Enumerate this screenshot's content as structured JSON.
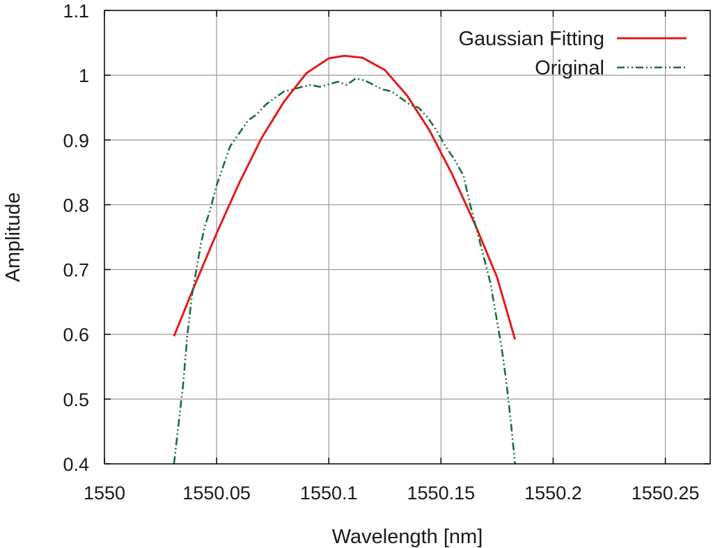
{
  "chart_data": {
    "type": "line",
    "title": "",
    "xlabel": "Wavelength [nm]",
    "ylabel": "Amplitude",
    "xlim": [
      1550,
      1550.27
    ],
    "ylim": [
      0.4,
      1.1
    ],
    "x_ticks": [
      1550,
      1550.05,
      1550.1,
      1550.15,
      1550.2,
      1550.25
    ],
    "x_tick_labels": [
      "1550",
      "1550.05",
      "1550.1",
      "1550.15",
      "1550.2",
      "1550.25"
    ],
    "y_ticks": [
      0.4,
      0.5,
      0.6,
      0.7,
      0.8,
      0.9,
      1.0,
      1.1
    ],
    "y_tick_labels": [
      "0.4",
      "0.5",
      "0.6",
      "0.7",
      "0.8",
      "0.9",
      "1",
      "1.1"
    ],
    "grid": true,
    "legend_position": "top-right",
    "series": [
      {
        "name": "Gaussian Fitting",
        "color": "#e41a1c",
        "style": "solid",
        "x": [
          1550.031,
          1550.04,
          1550.05,
          1550.06,
          1550.07,
          1550.08,
          1550.09,
          1550.1,
          1550.107,
          1550.115,
          1550.125,
          1550.135,
          1550.145,
          1550.155,
          1550.165,
          1550.175,
          1550.183
        ],
        "y": [
          0.597,
          0.674,
          0.756,
          0.833,
          0.903,
          0.959,
          1.003,
          1.026,
          1.03,
          1.027,
          1.008,
          0.968,
          0.914,
          0.847,
          0.771,
          0.688,
          0.592
        ]
      },
      {
        "name": "Original",
        "color": "#1b6e3a",
        "style": "dash-dot-dot",
        "x": [
          1550.031,
          1550.033,
          1550.035,
          1550.037,
          1550.039,
          1550.041,
          1550.043,
          1550.045,
          1550.047,
          1550.05,
          1550.053,
          1550.056,
          1550.06,
          1550.064,
          1550.068,
          1550.072,
          1550.076,
          1550.08,
          1550.084,
          1550.088,
          1550.092,
          1550.096,
          1550.1,
          1550.104,
          1550.108,
          1550.112,
          1550.116,
          1550.12,
          1550.124,
          1550.128,
          1550.132,
          1550.136,
          1550.14,
          1550.144,
          1550.148,
          1550.152,
          1550.156,
          1550.16,
          1550.163,
          1550.166,
          1550.169,
          1550.172,
          1550.175,
          1550.177,
          1550.179,
          1550.181,
          1550.183
        ],
        "y": [
          0.4,
          0.46,
          0.52,
          0.6,
          0.66,
          0.7,
          0.74,
          0.77,
          0.79,
          0.83,
          0.86,
          0.89,
          0.91,
          0.93,
          0.94,
          0.955,
          0.965,
          0.975,
          0.978,
          0.982,
          0.985,
          0.982,
          0.986,
          0.99,
          0.985,
          0.995,
          0.992,
          0.985,
          0.978,
          0.975,
          0.965,
          0.955,
          0.95,
          0.935,
          0.915,
          0.89,
          0.87,
          0.845,
          0.8,
          0.76,
          0.72,
          0.68,
          0.62,
          0.58,
          0.53,
          0.47,
          0.4
        ]
      }
    ]
  }
}
